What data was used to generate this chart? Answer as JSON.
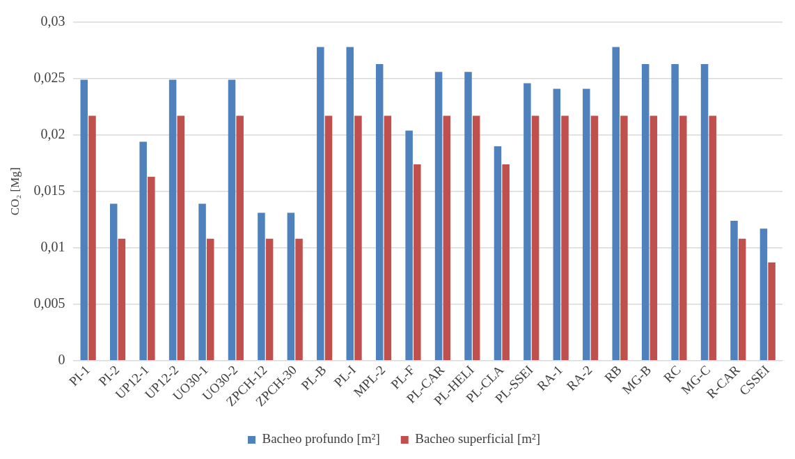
{
  "chart_data": {
    "type": "bar",
    "ylabel": "CO₂ [Mg]",
    "categories": [
      "PI-1",
      "PI-2",
      "UP12-1",
      "UP12-2",
      "UO30-1",
      "UO30-2",
      "ZPCH-12",
      "ZPCH-30",
      "PL-B",
      "PL-I",
      "MPL-2",
      "PL-F",
      "PL-CAR",
      "PL-HELI",
      "PL-CLA",
      "PL-SSEI",
      "RA-1",
      "RA-2",
      "RB",
      "MG-B",
      "RC",
      "MG-C",
      "R-CAR",
      "CSSEI"
    ],
    "series": [
      {
        "name": "Bacheo profundo [m²]",
        "color": "#4f81bd",
        "values": [
          0.0249,
          0.0139,
          0.0194,
          0.0249,
          0.0139,
          0.0249,
          0.0131,
          0.0131,
          0.0278,
          0.0278,
          0.0263,
          0.0204,
          0.0256,
          0.0256,
          0.019,
          0.0246,
          0.0241,
          0.0241,
          0.0278,
          0.0263,
          0.0263,
          0.0263,
          0.0124,
          0.0117
        ]
      },
      {
        "name": "Bacheo superficial [m²]",
        "color": "#c0504d",
        "values": [
          0.0217,
          0.0108,
          0.0163,
          0.0217,
          0.0108,
          0.0217,
          0.0108,
          0.0108,
          0.0217,
          0.0217,
          0.0217,
          0.0174,
          0.0217,
          0.0217,
          0.0174,
          0.0217,
          0.0217,
          0.0217,
          0.0217,
          0.0217,
          0.0217,
          0.0217,
          0.0108,
          0.0087
        ]
      }
    ],
    "ylim": [
      0,
      0.03
    ],
    "yticks": [
      0,
      {
        "value": 0.005,
        "label": "0,005"
      },
      {
        "value": 0.01,
        "label": "0,01"
      },
      {
        "value": 0.015,
        "label": "0,015"
      },
      {
        "value": 0.02,
        "label": "0,02"
      },
      {
        "value": 0.025,
        "label": "0,025"
      },
      {
        "value": 0.03,
        "label": "0,03"
      }
    ],
    "grid": "y",
    "legend": "bottom"
  }
}
